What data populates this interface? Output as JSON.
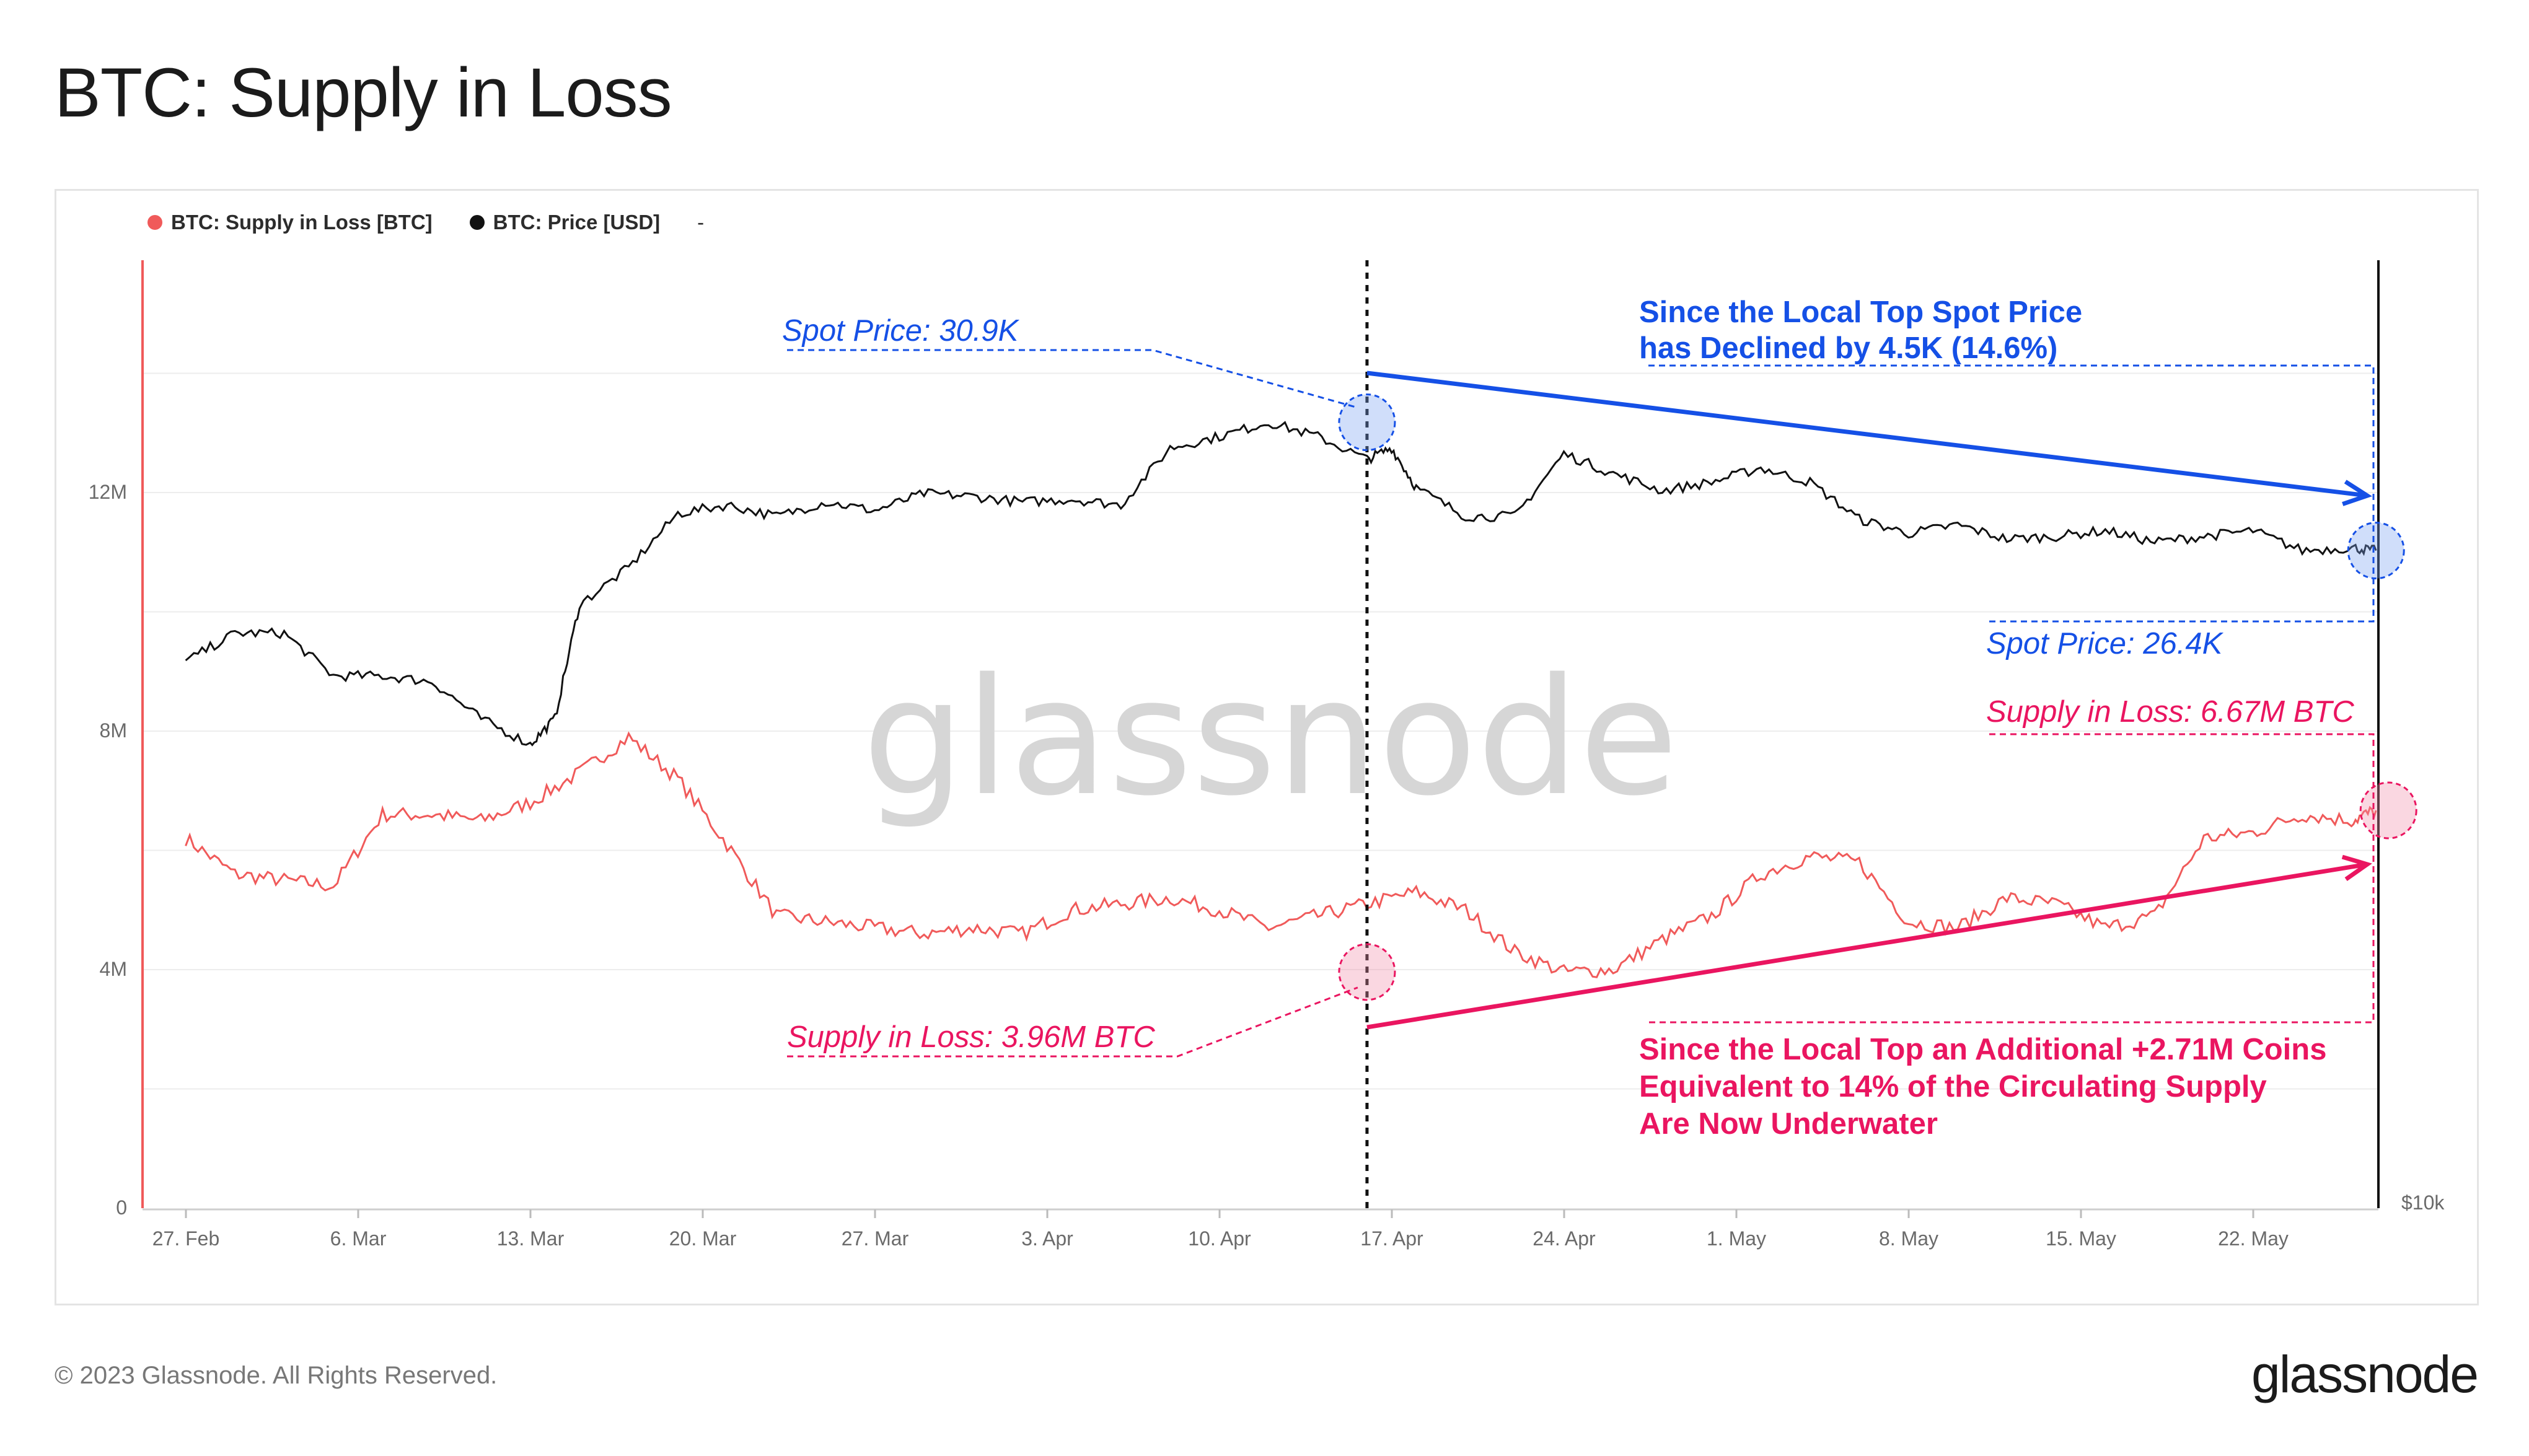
{
  "title": "BTC: Supply in Loss",
  "footer": "© 2023 Glassnode. All Rights Reserved.",
  "logo": "glassnode",
  "watermark": "glassnode",
  "legend": [
    {
      "label": "BTC: Supply in Loss [BTC]",
      "color": "#f05a5a"
    },
    {
      "label": "BTC: Price [USD]",
      "color": "#111111"
    },
    {
      "label": "-",
      "color": ""
    }
  ],
  "chart_data": {
    "type": "line",
    "x_tick_labels": [
      "27. Feb",
      "6. Mar",
      "13. Mar",
      "20. Mar",
      "27. Mar",
      "3. Apr",
      "10. Apr",
      "17. Apr",
      "24. Apr",
      "1. May",
      "8. May",
      "15. May",
      "22. May"
    ],
    "y_left_tick_labels": [
      "0",
      "4M",
      "8M",
      "12M"
    ],
    "y_left_range": [
      0,
      16000000
    ],
    "y_right_tick_labels": [
      "$10k"
    ],
    "grid": true,
    "series": [
      {
        "name": "BTC: Supply in Loss [BTC]",
        "color": "#f05a5a",
        "x_day": [
          0,
          2,
          4,
          6,
          8,
          10,
          12,
          14,
          16,
          18,
          20,
          22,
          24,
          26,
          28,
          30,
          32,
          34,
          36,
          38,
          40,
          42,
          44,
          46,
          48,
          50,
          52,
          54,
          56,
          58,
          60,
          62,
          64,
          66,
          68,
          70,
          72,
          74,
          76,
          78,
          80,
          82,
          84,
          86,
          88,
          89
        ],
        "values": [
          6.2,
          5.6,
          5.5,
          5.4,
          6.6,
          6.6,
          6.5,
          6.8,
          7.3,
          7.9,
          7.2,
          6.1,
          4.9,
          4.8,
          4.7,
          4.6,
          4.7,
          4.6,
          5.0,
          5.1,
          5.2,
          5.0,
          4.7,
          4.9,
          5.1,
          5.3,
          5.0,
          4.3,
          3.96,
          4.0,
          4.5,
          4.9,
          5.6,
          5.9,
          5.8,
          4.8,
          4.7,
          5.2,
          5.1,
          4.7,
          4.9,
          6.2,
          6.3,
          6.6,
          6.5,
          6.67
        ]
      },
      {
        "name": "BTC: Price [USD]",
        "color": "#111111",
        "x_day": [
          0,
          2,
          4,
          6,
          8,
          10,
          12,
          14,
          15,
          16,
          18,
          20,
          22,
          24,
          26,
          28,
          30,
          32,
          34,
          36,
          38,
          40,
          42,
          44,
          46,
          48,
          49,
          50,
          52,
          54,
          56,
          58,
          60,
          62,
          64,
          66,
          68,
          70,
          72,
          74,
          76,
          78,
          80,
          82,
          84,
          86,
          88,
          89
        ],
        "values": [
          22.5,
          23.5,
          23.5,
          22.0,
          22.0,
          21.8,
          20.5,
          19.6,
          20.5,
          24.5,
          25.8,
          27.7,
          28.0,
          27.6,
          28.1,
          27.8,
          28.4,
          28.3,
          28.1,
          28.2,
          28.0,
          30.0,
          30.4,
          30.9,
          30.4,
          29.6,
          30.0,
          28.6,
          27.6,
          27.6,
          29.8,
          29.1,
          28.5,
          28.8,
          29.3,
          28.8,
          27.5,
          27.0,
          27.3,
          26.8,
          26.9,
          27.1,
          26.7,
          26.9,
          27.1,
          26.4,
          26.5,
          26.4
        ]
      }
    ],
    "annotations": {
      "spot_top": "Spot Price: 30.9K",
      "spot_now": "Spot Price: 26.4K",
      "supply_top": "Supply in Loss: 3.96M BTC",
      "supply_now": "Supply in Loss: 6.67M BTC",
      "price_note": [
        "Since the Local Top Spot Price",
        "has Declined by 4.5K (14.6%)"
      ],
      "supply_note": [
        "Since the Local Top an Additional +2.71M Coins",
        "Equivalent to 14% of the Circulating Supply",
        "Are Now Underwater"
      ]
    },
    "colors": {
      "blue": "#1550e6",
      "pink": "#ea1560",
      "supply": "#f05a5a",
      "price": "#111111"
    }
  }
}
